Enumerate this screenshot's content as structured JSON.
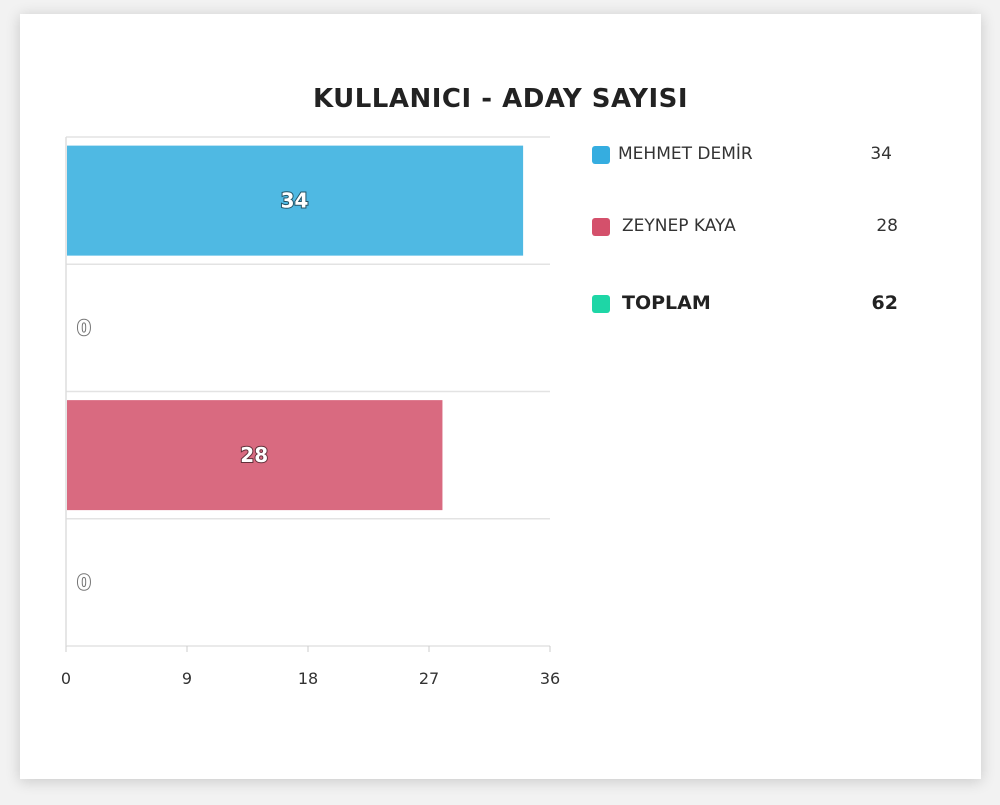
{
  "chart_data": {
    "type": "bar",
    "orientation": "horizontal",
    "title": "KULLANICI - ADAY SAYISI",
    "categories": [
      "MEHMET DEMİR",
      "",
      "ZEYNEP KAYA",
      ""
    ],
    "values": [
      34,
      0,
      28,
      0
    ],
    "bar_labels": [
      "34",
      "0",
      "28",
      "0"
    ],
    "bar_colors": [
      "#4fb9e3",
      "#4fb9e3",
      "#d96a80",
      "#d96a80"
    ],
    "xlim": [
      0,
      36
    ],
    "x_ticks": [
      0,
      9,
      18,
      27,
      36
    ],
    "grid": true,
    "legend_position": "right"
  },
  "legend": {
    "items": [
      {
        "name": "MEHMET DEMİR",
        "value": "34",
        "color": "#35ade0"
      },
      {
        "name": "ZEYNEP KAYA",
        "value": "28",
        "color": "#d4506b"
      }
    ],
    "total": {
      "name": "TOPLAM",
      "value": "62",
      "color": "#1ed6a6"
    }
  }
}
